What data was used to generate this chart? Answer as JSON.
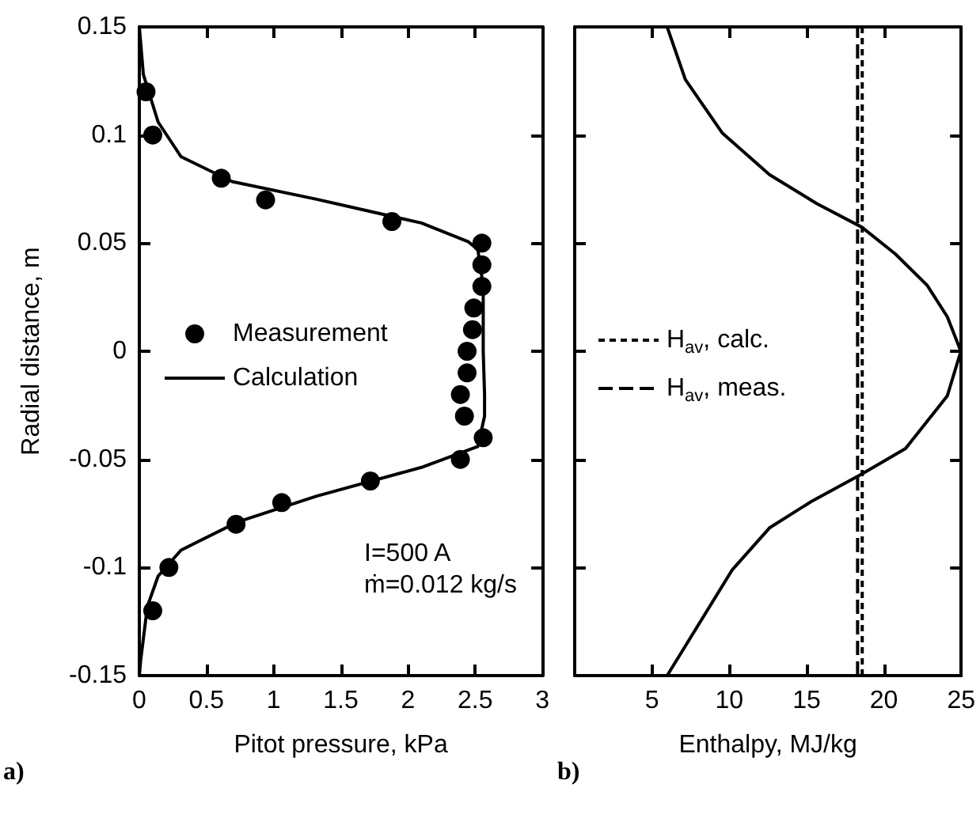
{
  "chart_data": [
    {
      "type": "scatter",
      "xlabel": "Pitot pressure, kPa",
      "ylabel": "Radial distance, m",
      "xlim": [
        0,
        3
      ],
      "xticks": [
        0,
        0.5,
        1,
        1.5,
        2,
        2.5,
        3
      ],
      "ylim": [
        -0.15,
        0.15
      ],
      "yticks": [
        -0.15,
        -0.1,
        -0.05,
        0,
        0.05,
        0.1,
        0.15
      ],
      "grid": false,
      "legend": "left",
      "annotations": [
        "I=500 A",
        "ṁ=0.012 kg/s",
        "a)"
      ],
      "series": [
        {
          "name": "Measurement",
          "marker": "circle",
          "color": "#000000",
          "x": [
            0.05,
            0.1,
            0.61,
            0.94,
            1.88,
            2.55,
            2.55,
            2.55,
            2.49,
            2.48,
            2.44,
            2.44,
            2.39,
            2.42,
            2.56,
            2.39,
            1.72,
            1.06,
            0.72,
            0.22,
            0.1
          ],
          "values": [
            0.12,
            0.1,
            0.08,
            0.07,
            0.06,
            0.05,
            0.04,
            0.03,
            0.02,
            0.01,
            0,
            -0.01,
            -0.02,
            -0.03,
            -0.04,
            -0.05,
            -0.06,
            -0.07,
            -0.08,
            -0.1,
            -0.12
          ]
        },
        {
          "name": "Calculation",
          "type": "line",
          "marker": "none",
          "line_style": "solid",
          "color": "#000000",
          "x": [
            0,
            0.03,
            0.14,
            0.31,
            0.69,
            1.32,
            2.1,
            2.45,
            2.52,
            2.56,
            2.56,
            2.57,
            2.57,
            2.52,
            2.1,
            1.32,
            0.73,
            0.31,
            0.14,
            0.06,
            0.01,
            0
          ],
          "values": [
            0.15,
            0.128,
            0.106,
            0.09,
            0.0785,
            0.0703,
            0.0593,
            0.0506,
            0.047,
            0.03,
            0,
            -0.02,
            -0.03,
            -0.044,
            -0.0537,
            -0.067,
            -0.079,
            -0.092,
            -0.104,
            -0.118,
            -0.143,
            -0.15
          ]
        }
      ]
    },
    {
      "type": "line",
      "xlabel": "Enthalpy, MJ/kg",
      "xlim": [
        0,
        25
      ],
      "xticks": [
        {
          "value": 0,
          "label": null
        },
        5,
        10,
        15,
        20,
        25
      ],
      "ylim": [
        -0.15,
        0.15
      ],
      "yticks": [
        -0.15,
        -0.1,
        -0.05,
        0,
        0.05,
        0.1,
        0.15
      ],
      "tick_labels": "x",
      "grid": false,
      "legend": "left",
      "annotations": [
        "b)"
      ],
      "series": [
        {
          "marker": "none",
          "line_style": "solid",
          "color": "#000000",
          "x": [
            5.98,
            10.2,
            12.6,
            15.3,
            18.57,
            21.4,
            24.1,
            24.98,
            24.1,
            22.8,
            20.74,
            18.57,
            15.65,
            12.6,
            9.54,
            7.16,
            5.98
          ],
          "values": [
            -0.15,
            -0.101,
            -0.0817,
            -0.0695,
            -0.0568,
            -0.045,
            -0.0207,
            0,
            0.016,
            0.0305,
            0.045,
            0.0574,
            0.0683,
            0.0817,
            0.101,
            0.1256,
            0.15
          ]
        },
        {
          "name": "H$_{av}$, calc.",
          "marker": "none",
          "line_style": "dotted",
          "color": "#000000",
          "x": [
            18.6,
            18.6
          ],
          "values": [
            -0.15,
            0.15
          ]
        },
        {
          "name": "H$_{av}$, meas.",
          "marker": "none",
          "line_style": "dashed",
          "color": "#000000",
          "x": [
            18.3,
            18.3
          ],
          "values": [
            -0.15,
            0.15
          ]
        }
      ]
    }
  ]
}
